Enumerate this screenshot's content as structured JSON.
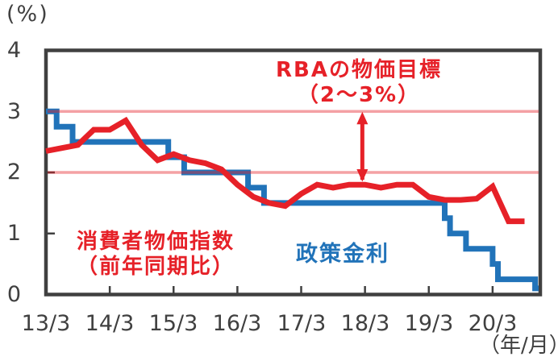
{
  "axis": {
    "y_unit": "(%)",
    "x_unit": "（年/月）",
    "y_ticks": [
      "4",
      "3",
      "2",
      "1",
      "0"
    ],
    "x_ticks": [
      "13/3",
      "14/3",
      "15/3",
      "16/3",
      "17/3",
      "18/3",
      "19/3",
      "20/3"
    ]
  },
  "annotations": {
    "target_line1": "RBAの物価目標",
    "target_line2": "（2～3%）",
    "cpi_line1": "消費者物価指数",
    "cpi_line2": "（前年同期比）",
    "policy_rate_label": "政策金利"
  },
  "colors": {
    "cpi_red": "#e62128",
    "policy_blue": "#2173b9",
    "target_band_pink": "#f2a6ad",
    "axis_gray": "#404040"
  },
  "chart_data": {
    "type": "line",
    "title": "",
    "x_axis": {
      "label": "（年/月）",
      "start": "13/3",
      "end": "20/12",
      "tick_labels": [
        "13/3",
        "14/3",
        "15/3",
        "16/3",
        "17/3",
        "18/3",
        "19/3",
        "20/3"
      ]
    },
    "y_axis": {
      "label": "(%)",
      "range": [
        0,
        4
      ],
      "tick_values": [
        0,
        1,
        2,
        3,
        4
      ],
      "grid": false
    },
    "target_band": {
      "label": "RBAの物価目標（2～3%）",
      "low_pct": 2,
      "high_pct": 3,
      "arrow_month_index": 59.5
    },
    "series": [
      {
        "name": "消費者物価指数（前年同期比）",
        "style": "line",
        "color": "#e62128",
        "points": [
          {
            "ym": "13/3",
            "v": 2.35
          },
          {
            "ym": "13/6",
            "v": 2.4
          },
          {
            "ym": "13/9",
            "v": 2.45
          },
          {
            "ym": "13/12",
            "v": 2.7
          },
          {
            "ym": "14/3",
            "v": 2.7
          },
          {
            "ym": "14/6",
            "v": 2.85
          },
          {
            "ym": "14/9",
            "v": 2.45
          },
          {
            "ym": "14/12",
            "v": 2.2
          },
          {
            "ym": "15/3",
            "v": 2.3
          },
          {
            "ym": "15/6",
            "v": 2.2
          },
          {
            "ym": "15/9",
            "v": 2.15
          },
          {
            "ym": "15/12",
            "v": 2.05
          },
          {
            "ym": "16/3",
            "v": 1.8
          },
          {
            "ym": "16/6",
            "v": 1.6
          },
          {
            "ym": "16/9",
            "v": 1.5
          },
          {
            "ym": "16/12",
            "v": 1.45
          },
          {
            "ym": "17/3",
            "v": 1.65
          },
          {
            "ym": "17/6",
            "v": 1.8
          },
          {
            "ym": "17/9",
            "v": 1.75
          },
          {
            "ym": "17/12",
            "v": 1.8
          },
          {
            "ym": "18/3",
            "v": 1.8
          },
          {
            "ym": "18/6",
            "v": 1.75
          },
          {
            "ym": "18/9",
            "v": 1.8
          },
          {
            "ym": "18/12",
            "v": 1.8
          },
          {
            "ym": "19/3",
            "v": 1.6
          },
          {
            "ym": "19/6",
            "v": 1.55
          },
          {
            "ym": "19/9",
            "v": 1.55
          },
          {
            "ym": "19/12",
            "v": 1.57
          },
          {
            "ym": "20/3",
            "v": 1.77
          },
          {
            "ym": "20/6",
            "v": 1.2
          },
          {
            "ym": "20/9",
            "v": 1.2
          }
        ]
      },
      {
        "name": "政策金利",
        "style": "step",
        "color": "#2173b9",
        "changes": [
          {
            "ym": "13/3",
            "rate": 3.0
          },
          {
            "ym": "13/5",
            "rate": 2.75
          },
          {
            "ym": "13/8",
            "rate": 2.5
          },
          {
            "ym": "15/2",
            "rate": 2.25
          },
          {
            "ym": "15/5",
            "rate": 2.0
          },
          {
            "ym": "16/5",
            "rate": 1.75
          },
          {
            "ym": "16/8",
            "rate": 1.5
          },
          {
            "ym": "19/6",
            "rate": 1.25
          },
          {
            "ym": "19/7",
            "rate": 1.0
          },
          {
            "ym": "19/10",
            "rate": 0.75
          },
          {
            "ym": "20/3",
            "rate": 0.5
          },
          {
            "ym": "20/4",
            "rate": 0.25
          },
          {
            "ym": "20/11",
            "rate": 0.1
          }
        ],
        "end_ym": "20/12"
      }
    ]
  }
}
